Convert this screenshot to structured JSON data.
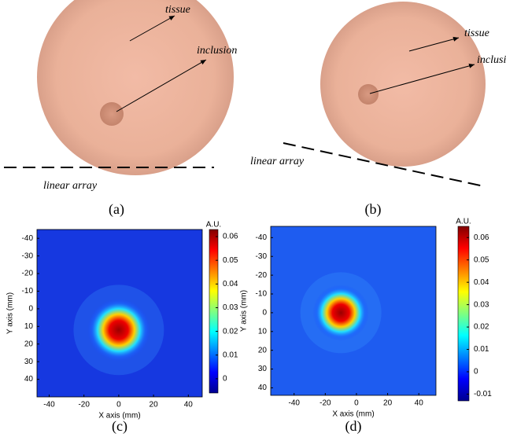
{
  "panels": [
    {
      "caption": "(a)",
      "tissue": "tissue",
      "inclusion": "inclusion",
      "array": "linear array"
    },
    {
      "caption": "(b)",
      "tissue": "tissue",
      "inclusion": "inclusi",
      "array": "linear array"
    }
  ],
  "chart_data": [
    {
      "type": "heatmap",
      "caption": "(c)",
      "xlabel": "X axis (mm)",
      "ylabel": "Y axis (mm)",
      "xlim": [
        -47,
        48
      ],
      "xticks": [
        -40,
        -20,
        0,
        20,
        40
      ],
      "ylim": [
        -45,
        50
      ],
      "yticks": [
        -40,
        -30,
        -20,
        -10,
        0,
        10,
        20,
        30,
        40
      ],
      "y_inverted": true,
      "colorbar_label": "A.U.",
      "clim": [
        -0.006,
        0.063
      ],
      "cticks": [
        0,
        0.01,
        0.02,
        0.03,
        0.04,
        0.05,
        0.06
      ],
      "background_color": "#1638e0",
      "peak": {
        "x": 0,
        "y": 12,
        "value": 0.062
      }
    },
    {
      "type": "heatmap",
      "caption": "(d)",
      "xlabel": "X axis (mm)",
      "ylabel": "Y axis (mm)",
      "xlim": [
        -55,
        51
      ],
      "xticks": [
        -40,
        -20,
        0,
        20,
        40
      ],
      "ylim": [
        -46,
        44
      ],
      "yticks": [
        -40,
        -30,
        -20,
        -10,
        0,
        10,
        20,
        30,
        40
      ],
      "y_inverted": true,
      "colorbar_label": "A.U.",
      "clim": [
        -0.013,
        0.065
      ],
      "cticks": [
        -0.01,
        0,
        0.01,
        0.02,
        0.03,
        0.04,
        0.05,
        0.06
      ],
      "background_color": "#1e5cf0",
      "peak": {
        "x": -10,
        "y": 0,
        "value": 0.063
      }
    }
  ]
}
